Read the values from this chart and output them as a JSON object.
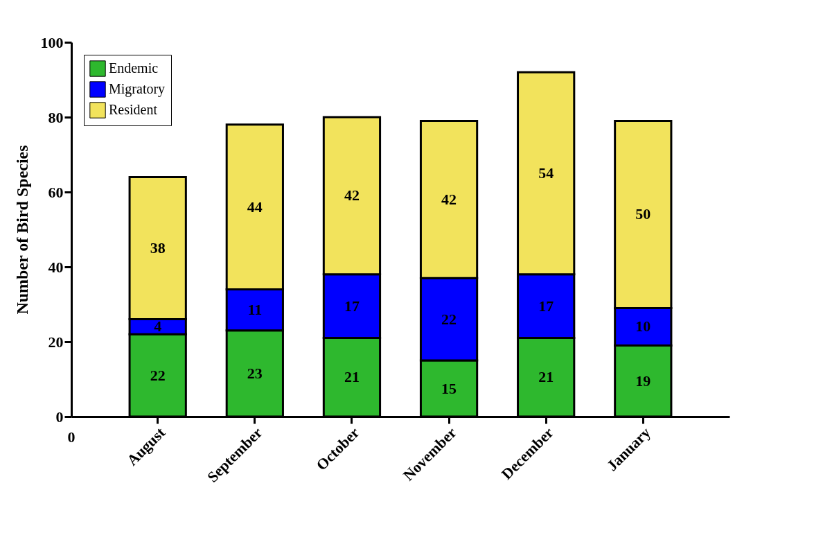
{
  "chart_data": {
    "type": "bar",
    "stacked": true,
    "ylabel": "Number of Bird Species",
    "categories": [
      "August",
      "September",
      "October",
      "November",
      "December",
      "January"
    ],
    "series": [
      {
        "name": "Endemic",
        "color": "#2eb82e",
        "values": [
          22,
          23,
          21,
          15,
          21,
          19
        ]
      },
      {
        "name": "Migratory",
        "color": "#0000ff",
        "values": [
          4,
          11,
          17,
          22,
          17,
          10
        ]
      },
      {
        "name": "Resident",
        "color": "#f2e35c",
        "values": [
          38,
          44,
          42,
          42,
          54,
          50
        ]
      }
    ],
    "ylim": [
      0,
      100
    ],
    "yticks": [
      0,
      20,
      40,
      60,
      80,
      100
    ],
    "grid": false,
    "legend": "top left",
    "data_labels": true,
    "annotations": [
      "0"
    ]
  }
}
